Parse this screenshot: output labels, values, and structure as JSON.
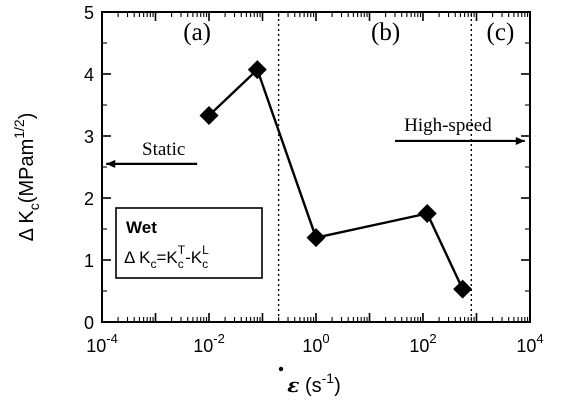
{
  "chart_data": {
    "type": "line",
    "x_scale": "log",
    "xlim": [
      0.0001,
      10000
    ],
    "ylim": [
      0,
      5
    ],
    "x_ticks": [
      {
        "value": 0.0001,
        "base": "10",
        "exp": "-4"
      },
      {
        "value": 0.01,
        "base": "10",
        "exp": "-2"
      },
      {
        "value": 1,
        "base": "10",
        "exp": "0"
      },
      {
        "value": 100,
        "base": "10",
        "exp": "2"
      },
      {
        "value": 10000,
        "base": "10",
        "exp": "4"
      }
    ],
    "y_ticks": [
      "0",
      "1",
      "2",
      "3",
      "4",
      "5"
    ],
    "xlabel": {
      "symbol": "ε",
      "text": " (s",
      "exp": "-1",
      "suffix": ")"
    },
    "ylabel": {
      "prefix": "Δ K",
      "sub": "c",
      "text": "(MPam",
      "exp": "1/2",
      "suffix": ")"
    },
    "grid": false,
    "series": [
      {
        "x": [
          0.01,
          0.08,
          1,
          120,
          550
        ],
        "y": [
          3.33,
          4.07,
          1.36,
          1.75,
          0.53
        ]
      }
    ],
    "regions": [
      {
        "label": "(a)",
        "x_center": 0.006
      },
      {
        "label": "(b)",
        "x_center": 20
      },
      {
        "label": "(c)",
        "x_center": 2800
      }
    ],
    "region_dividers": [
      0.2,
      800
    ],
    "annotations": {
      "static": {
        "label": "Static",
        "y": 2.55,
        "arrow_from": 0.006,
        "arrow_to": 0.00012
      },
      "high_speed": {
        "label": "High-speed",
        "y": 2.92,
        "arrow_from": 30,
        "arrow_to": 8000
      }
    },
    "legend": {
      "title": "Wet",
      "formula": {
        "lhs": "Δ K",
        "lhs_sub": "c",
        "eq": "=K",
        "t_sub": "c",
        "t_sup": "T",
        "minus": "-K",
        "l_sub": "c",
        "l_sup": "L"
      },
      "placement": "lower-left"
    }
  }
}
